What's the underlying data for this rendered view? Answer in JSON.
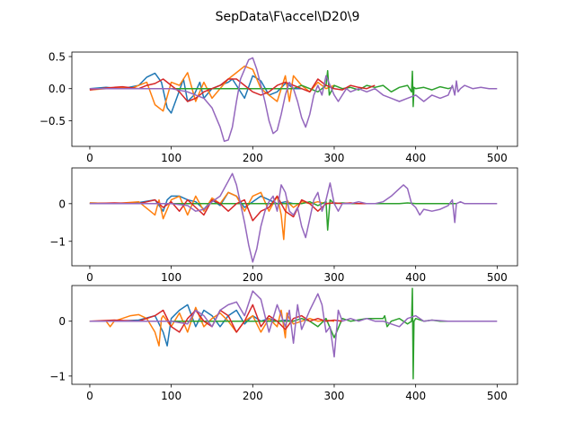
{
  "title": "SepData\\F\\accel\\D20\\9",
  "colors": [
    "#1f77b4",
    "#ff7f0e",
    "#2ca02c",
    "#d62728",
    "#9467bd"
  ],
  "chart_data": [
    {
      "type": "line",
      "xlim": [
        -22,
        525
      ],
      "ylim": [
        -0.9,
        0.57
      ],
      "x_ticks": [
        0,
        100,
        200,
        300,
        400,
        500
      ],
      "y_ticks": [
        -0.5,
        0.0,
        0.5
      ],
      "y_tick_labels": [
        "−0.5",
        "0.0",
        "0.5"
      ],
      "series": [
        {
          "x": [
            0,
            20,
            40,
            60,
            70,
            80,
            88,
            95,
            100,
            108,
            115,
            120,
            128,
            135,
            140,
            150,
            160,
            170,
            175,
            180,
            190,
            200,
            210,
            220,
            230,
            240,
            245,
            250,
            260
          ],
          "y": [
            0,
            0.02,
            0,
            0.05,
            0.18,
            0.24,
            0.1,
            -0.3,
            -0.38,
            -0.1,
            0.15,
            -0.2,
            -0.1,
            0.1,
            -0.15,
            0.0,
            0.05,
            0.1,
            0.15,
            0.05,
            -0.15,
            0.2,
            0.12,
            -0.1,
            -0.05,
            0.08,
            0.05,
            0.0,
            0.0
          ]
        },
        {
          "x": [
            0,
            20,
            40,
            50,
            60,
            70,
            80,
            90,
            100,
            110,
            120,
            130,
            140,
            150,
            160,
            170,
            180,
            190,
            200,
            210,
            220,
            230,
            240,
            245,
            250,
            260,
            270,
            280,
            290,
            300
          ],
          "y": [
            -0.02,
            0,
            0.02,
            0.0,
            0.05,
            0.1,
            -0.25,
            -0.35,
            0.1,
            0.05,
            0.25,
            -0.2,
            0.1,
            -0.15,
            0.0,
            0.15,
            0.25,
            0.35,
            0.3,
            0.0,
            -0.1,
            -0.2,
            0.2,
            -0.2,
            0.2,
            0.05,
            -0.05,
            0.1,
            0.0,
            0.05
          ]
        },
        {
          "x": [
            0,
            50,
            100,
            150,
            200,
            250,
            260,
            270,
            280,
            290,
            292,
            294,
            300,
            310,
            320,
            330,
            340,
            350,
            360,
            370,
            380,
            390,
            395,
            396,
            397,
            398,
            400,
            410,
            420,
            430,
            440,
            445
          ],
          "y": [
            0,
            0,
            0,
            0,
            0,
            0,
            0.05,
            0,
            -0.05,
            0.05,
            0.28,
            -0.1,
            0.05,
            0,
            0.02,
            -0.02,
            0.05,
            0.02,
            0.05,
            -0.05,
            0.02,
            0.05,
            -0.05,
            0.27,
            -0.28,
            0.02,
            0.0,
            0.02,
            -0.02,
            0.03,
            0.0,
            0.02
          ]
        },
        {
          "x": [
            0,
            20,
            40,
            60,
            70,
            80,
            90,
            100,
            110,
            120,
            130,
            140,
            150,
            160,
            170,
            180,
            190,
            200,
            210,
            220,
            230,
            240,
            250,
            260,
            270,
            280,
            290,
            300,
            310,
            320,
            330,
            340,
            350
          ],
          "y": [
            -0.02,
            0.01,
            0.03,
            0,
            0.05,
            0.08,
            0.15,
            0.05,
            -0.05,
            -0.2,
            -0.15,
            -0.05,
            0.0,
            0.05,
            0.15,
            0.15,
            0.05,
            -0.05,
            -0.1,
            -0.05,
            0.05,
            0.1,
            0.05,
            0.0,
            -0.05,
            0.15,
            0.05,
            0.0,
            -0.02,
            0.05,
            0.02,
            0.0,
            0.05
          ]
        },
        {
          "x": [
            0,
            20,
            40,
            60,
            80,
            100,
            120,
            140,
            150,
            160,
            165,
            170,
            175,
            180,
            185,
            190,
            195,
            200,
            205,
            210,
            215,
            220,
            225,
            230,
            235,
            240,
            245,
            250,
            255,
            260,
            265,
            270,
            275,
            280,
            285,
            290,
            295,
            300,
            305,
            310,
            315,
            320,
            330,
            340,
            350,
            360,
            370,
            380,
            390,
            400,
            410,
            420,
            430,
            440,
            445,
            448,
            450,
            452,
            455,
            460,
            470,
            480,
            490,
            500
          ],
          "y": [
            0,
            0,
            0,
            0,
            0,
            0,
            -0.05,
            -0.15,
            -0.3,
            -0.6,
            -0.82,
            -0.8,
            -0.6,
            -0.2,
            0.15,
            0.3,
            0.45,
            0.48,
            0.3,
            0.05,
            -0.2,
            -0.5,
            -0.7,
            -0.65,
            -0.4,
            -0.1,
            0.1,
            0.0,
            -0.2,
            -0.45,
            -0.6,
            -0.4,
            -0.1,
            0.05,
            -0.1,
            0.2,
            0.05,
            -0.1,
            -0.2,
            -0.1,
            0.0,
            -0.05,
            0.0,
            -0.05,
            0.0,
            -0.1,
            -0.15,
            -0.2,
            -0.15,
            -0.1,
            -0.2,
            -0.1,
            -0.15,
            -0.1,
            0.05,
            -0.1,
            0.12,
            -0.05,
            0.0,
            0.05,
            0.0,
            0.02,
            0.0,
            0.0
          ]
        }
      ]
    },
    {
      "type": "line",
      "xlim": [
        -22,
        525
      ],
      "ylim": [
        -1.65,
        0.95
      ],
      "x_ticks": [
        0,
        100,
        200,
        300,
        400,
        500
      ],
      "y_ticks": [
        -1,
        0
      ],
      "y_tick_labels": [
        "−1",
        "0"
      ],
      "series": [
        {
          "x": [
            0,
            30,
            60,
            80,
            90,
            95,
            100,
            110,
            120,
            130,
            140,
            150,
            160,
            170,
            180,
            190,
            200,
            210,
            220,
            230,
            240,
            250,
            260
          ],
          "y": [
            0.02,
            0,
            0.03,
            0.1,
            -0.2,
            0.1,
            0.2,
            0.2,
            0.1,
            0.05,
            -0.15,
            0.1,
            -0.05,
            0.3,
            0.2,
            -0.1,
            0.05,
            0.2,
            0.1,
            0.0,
            0.05,
            0.0,
            0.0
          ]
        },
        {
          "x": [
            0,
            30,
            60,
            80,
            85,
            90,
            100,
            110,
            120,
            130,
            140,
            150,
            160,
            170,
            180,
            190,
            200,
            210,
            220,
            230,
            235,
            238,
            240,
            242,
            245,
            250,
            260,
            270,
            280,
            290,
            300
          ],
          "y": [
            0.02,
            0,
            0.05,
            -0.3,
            0.1,
            -0.4,
            0.1,
            0.2,
            -0.3,
            0.2,
            -0.2,
            0.15,
            0.0,
            0.3,
            0.2,
            -0.2,
            0.2,
            0.3,
            -0.2,
            0.2,
            -0.3,
            -0.95,
            -0.3,
            0.1,
            0.0,
            -0.1,
            0.05,
            0.0,
            0.05,
            0.0,
            0.02
          ]
        },
        {
          "x": [
            0,
            100,
            200,
            260,
            270,
            280,
            290,
            292,
            295,
            300,
            310,
            320,
            340,
            360,
            380,
            390,
            400,
            420,
            440,
            450
          ],
          "y": [
            0,
            0,
            0,
            0.0,
            0.05,
            -0.05,
            0.05,
            -0.7,
            0.1,
            0.0,
            0.02,
            0.0,
            0.0,
            0.0,
            0.0,
            0.02,
            0.0,
            0.0,
            0.0,
            0.0
          ]
        },
        {
          "x": [
            0,
            30,
            60,
            80,
            90,
            100,
            110,
            120,
            130,
            140,
            150,
            160,
            170,
            180,
            190,
            200,
            210,
            220,
            230,
            240,
            250,
            260,
            270,
            280,
            290,
            300,
            310,
            320,
            330,
            340,
            350
          ],
          "y": [
            0,
            0.02,
            0,
            0.1,
            -0.1,
            0.05,
            -0.2,
            0.1,
            -0.1,
            -0.3,
            0.1,
            0.0,
            -0.2,
            0.0,
            0.1,
            -0.45,
            -0.2,
            -0.1,
            0.2,
            -0.2,
            -0.35,
            0.1,
            0.0,
            -0.2,
            0.0,
            0.02,
            0.0,
            0.02,
            0.0,
            0.0,
            0.0
          ]
        },
        {
          "x": [
            0,
            50,
            100,
            120,
            130,
            140,
            150,
            160,
            170,
            175,
            180,
            190,
            195,
            200,
            205,
            210,
            215,
            220,
            225,
            230,
            235,
            240,
            245,
            250,
            255,
            260,
            265,
            270,
            275,
            280,
            285,
            290,
            295,
            300,
            305,
            310,
            320,
            330,
            340,
            350,
            360,
            370,
            380,
            385,
            390,
            395,
            400,
            405,
            410,
            420,
            430,
            440,
            445,
            448,
            450,
            455,
            460,
            480,
            500
          ],
          "y": [
            0,
            0,
            0,
            -0.05,
            -0.2,
            -0.15,
            0.05,
            0.2,
            0.6,
            0.8,
            0.5,
            -0.5,
            -1.1,
            -1.55,
            -1.2,
            -0.6,
            -0.2,
            0.05,
            0.2,
            -0.2,
            0.5,
            0.3,
            -0.2,
            -0.3,
            -0.1,
            -0.6,
            -0.9,
            -0.4,
            0.1,
            0.3,
            -0.2,
            0.1,
            0.55,
            0.0,
            -0.2,
            0.0,
            0.0,
            0.05,
            0.0,
            0.0,
            0.05,
            0.2,
            0.4,
            0.5,
            0.4,
            0.0,
            -0.1,
            -0.3,
            -0.15,
            -0.2,
            -0.15,
            -0.05,
            0.1,
            -0.5,
            0.0,
            0.05,
            0.0,
            0.0,
            0.0
          ]
        }
      ]
    },
    {
      "type": "line",
      "xlim": [
        -22,
        525
      ],
      "ylim": [
        -1.15,
        0.65
      ],
      "x_ticks": [
        0,
        100,
        200,
        300,
        400,
        500
      ],
      "y_ticks": [
        -1,
        0
      ],
      "y_tick_labels": [
        "−1",
        "0"
      ],
      "series": [
        {
          "x": [
            0,
            30,
            60,
            80,
            90,
            95,
            100,
            110,
            120,
            125,
            130,
            140,
            150,
            160,
            170,
            180,
            190,
            200,
            210,
            220,
            230,
            240,
            250
          ],
          "y": [
            0,
            0,
            0.02,
            0.1,
            -0.2,
            -0.45,
            0.05,
            0.2,
            0.3,
            0.1,
            -0.1,
            0.2,
            0.1,
            -0.1,
            0.1,
            0.2,
            -0.05,
            0.1,
            0.0,
            0.05,
            0.0,
            0.02,
            0.0
          ]
        },
        {
          "x": [
            0,
            20,
            25,
            30,
            50,
            60,
            70,
            80,
            85,
            88,
            90,
            100,
            110,
            120,
            130,
            140,
            150,
            160,
            170,
            180,
            190,
            200,
            210,
            220,
            230,
            235,
            240,
            242,
            245,
            250,
            260,
            270,
            280,
            290,
            300
          ],
          "y": [
            0,
            0,
            -0.1,
            0,
            0.1,
            0.12,
            0.05,
            -0.2,
            -0.45,
            0.05,
            0.1,
            -0.1,
            0.15,
            -0.2,
            0.25,
            -0.1,
            0.05,
            0.15,
            0.0,
            -0.2,
            0.0,
            0.1,
            -0.2,
            0.05,
            -0.1,
            0.2,
            -0.3,
            0.15,
            0.05,
            -0.05,
            0.0,
            0.05,
            0.0,
            0.02,
            0.0
          ]
        },
        {
          "x": [
            0,
            100,
            200,
            250,
            260,
            270,
            280,
            290,
            300,
            310,
            320,
            340,
            360,
            362,
            365,
            370,
            380,
            390,
            395,
            396,
            397,
            398,
            400,
            410,
            420,
            430,
            440,
            450
          ],
          "y": [
            0,
            0,
            0,
            0,
            0.05,
            0.0,
            -0.1,
            0.05,
            -0.3,
            0.05,
            0.0,
            0.05,
            0.05,
            0.1,
            -0.1,
            0.0,
            0.05,
            -0.05,
            0.0,
            0.6,
            -1.05,
            0.0,
            0.05,
            0.0,
            0.02,
            0.0,
            0.0,
            0.0
          ]
        },
        {
          "x": [
            0,
            30,
            60,
            80,
            90,
            100,
            110,
            120,
            130,
            140,
            150,
            160,
            170,
            180,
            190,
            200,
            210,
            220,
            230,
            240,
            250,
            260,
            270,
            280,
            290,
            300,
            310
          ],
          "y": [
            0,
            0.02,
            0,
            0.1,
            0.2,
            -0.1,
            -0.2,
            0.05,
            0.2,
            0.0,
            -0.1,
            0.2,
            0.1,
            -0.2,
            0.0,
            0.3,
            -0.1,
            0.1,
            0.0,
            -0.15,
            0.05,
            0.1,
            0.0,
            0.05,
            0.0,
            0.02,
            0.0
          ]
        },
        {
          "x": [
            0,
            50,
            100,
            120,
            130,
            140,
            150,
            160,
            170,
            180,
            190,
            200,
            210,
            220,
            230,
            240,
            245,
            250,
            255,
            260,
            270,
            280,
            285,
            290,
            295,
            300,
            305,
            310,
            320,
            330,
            340,
            350,
            360,
            370,
            380,
            390,
            400,
            410,
            420,
            440,
            460,
            480,
            500
          ],
          "y": [
            0,
            0,
            0,
            -0.05,
            0.2,
            0.1,
            -0.1,
            0.2,
            0.3,
            0.35,
            0.1,
            0.55,
            0.4,
            -0.2,
            0.3,
            -0.1,
            0.2,
            -0.4,
            0.3,
            -0.15,
            0.2,
            0.5,
            0.3,
            -0.2,
            -0.1,
            -0.65,
            0.2,
            0.0,
            0.05,
            0.0,
            0.05,
            0.0,
            0.0,
            -0.05,
            -0.1,
            0.05,
            0.1,
            0.0,
            0.02,
            0.0,
            0.0,
            0.0,
            0.0
          ]
        }
      ]
    }
  ]
}
